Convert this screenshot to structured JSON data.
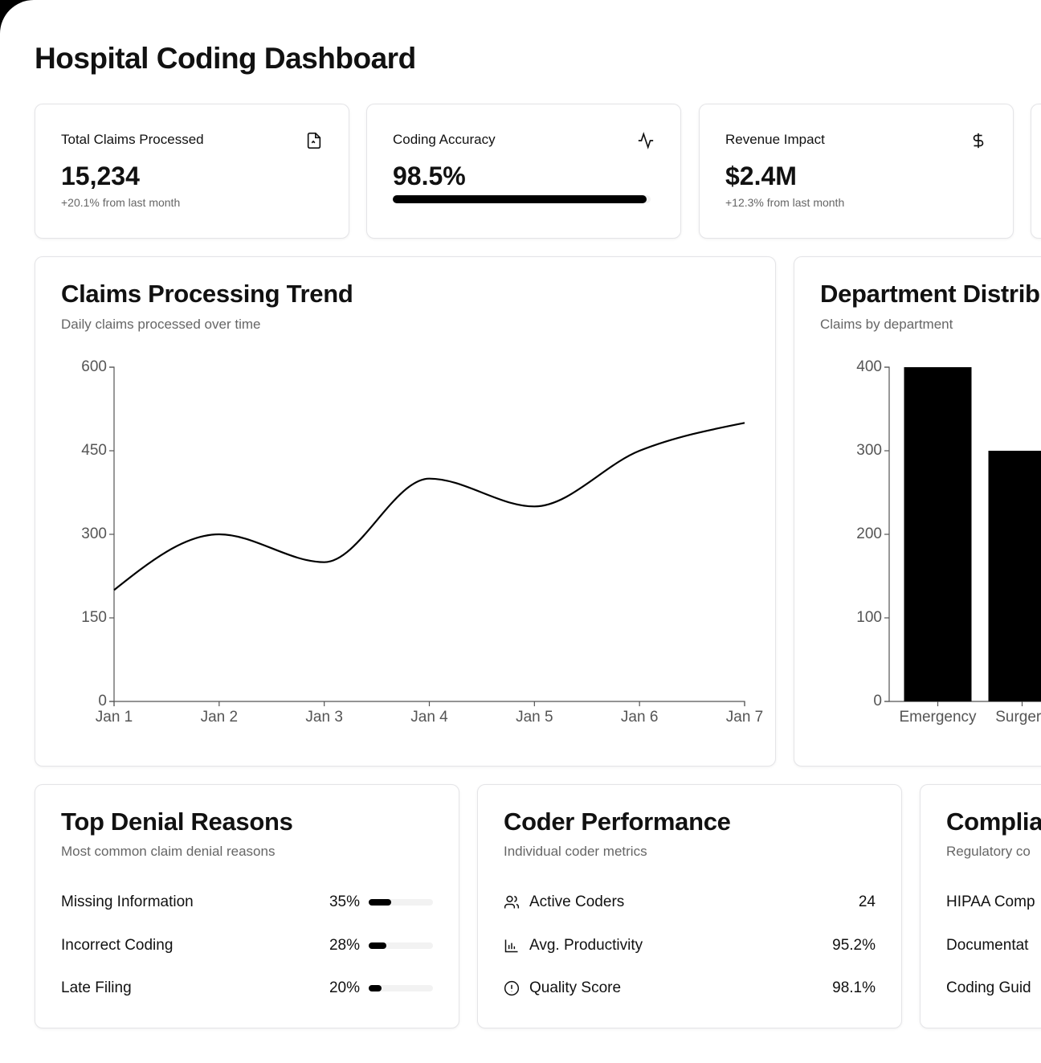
{
  "header": {
    "title": "Hospital Coding Dashboard"
  },
  "stats": [
    {
      "label": "Total Claims Processed",
      "value": "15,234",
      "note": "+20.1% from last month"
    },
    {
      "label": "Coding Accuracy",
      "value": 98.5,
      "value_label": "98.5%"
    },
    {
      "label": "Revenue Impact",
      "value": "$2.4M",
      "note": "+12.3% from last month"
    }
  ],
  "trend_chart": {
    "type": "line",
    "title": "Claims Processing Trend",
    "subtitle": "Daily claims processed over time",
    "categories": [
      "Jan 1",
      "Jan 2",
      "Jan 3",
      "Jan 4",
      "Jan 5",
      "Jan 6",
      "Jan 7"
    ],
    "values": [
      200,
      300,
      250,
      400,
      350,
      450,
      500
    ],
    "color": "#000000",
    "ylim": [
      0,
      600
    ],
    "yticks": [
      0,
      150,
      300,
      450,
      600
    ]
  },
  "department_chart": {
    "type": "bar",
    "title": "Department Distrib",
    "subtitle": "Claims by department",
    "categories": [
      "Emergency",
      "Surgery"
    ],
    "values": [
      400,
      300
    ],
    "color": "#000000",
    "ylim": [
      0,
      400
    ],
    "yticks": [
      0,
      100,
      200,
      300,
      400
    ]
  },
  "denial_reasons": {
    "title": "Top Denial Reasons",
    "subtitle": "Most common claim denial reasons",
    "items": [
      {
        "label": "Missing Information",
        "value": 35,
        "value_label": "35%"
      },
      {
        "label": "Incorrect Coding",
        "value": 28,
        "value_label": "28%"
      },
      {
        "label": "Late Filing",
        "value": 20,
        "value_label": "20%"
      }
    ]
  },
  "coder_performance": {
    "title": "Coder Performance",
    "subtitle": "Individual coder metrics",
    "items": [
      {
        "label": "Active Coders",
        "value": "24"
      },
      {
        "label": "Avg. Productivity",
        "value": "95.2%"
      },
      {
        "label": "Quality Score",
        "value": "98.1%"
      }
    ]
  },
  "compliance": {
    "title": "Complia",
    "subtitle": "Regulatory co",
    "items": [
      "HIPAA Comp",
      "Documentat",
      "Coding Guid"
    ]
  }
}
